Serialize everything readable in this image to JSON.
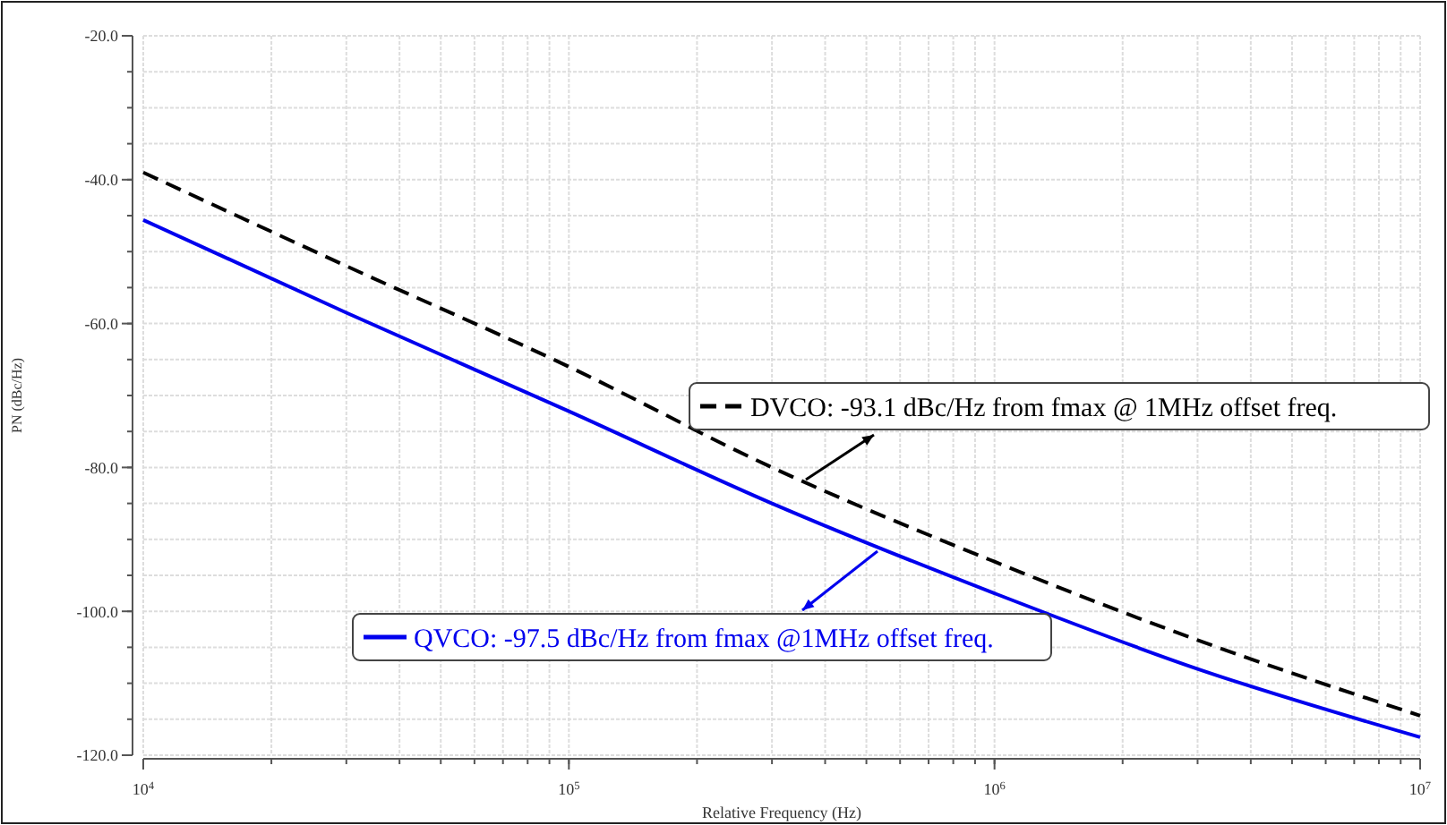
{
  "chart_data": {
    "type": "line",
    "xlabel": "Relative Frequency (Hz)",
    "ylabel": "PN (dBc/Hz)",
    "log": "x",
    "grid": true,
    "legend": "right",
    "x": [
      10000,
      30000,
      100000,
      300000,
      1000000,
      3000000,
      10000000
    ],
    "xlim": [
      10000,
      10000000
    ],
    "xticks": [
      {
        "value": 10000,
        "label": "10$^{4}$"
      },
      {
        "value": 100000,
        "label": "10$^{5}$"
      },
      {
        "value": 1000000,
        "label": "10$^{6}$"
      },
      {
        "value": 10000000,
        "label": "10$^{7}$"
      }
    ],
    "ylim": [
      -120,
      -20
    ],
    "yticks": [
      {
        "value": -120,
        "label": "-120.0"
      },
      {
        "value": -100,
        "label": "-100.0"
      },
      {
        "value": -80,
        "label": "-80.0"
      },
      {
        "value": -60,
        "label": "-60.0"
      },
      {
        "value": -40,
        "label": "-40.0"
      },
      {
        "value": -20,
        "label": "-20.0"
      }
    ],
    "series": [
      {
        "name": "DVCO: -93.1 dBc/Hz from fmax @ 1MHz offset freq.",
        "color": "#000000",
        "line_style": "dashed",
        "values": [
          -39,
          -52,
          -66,
          -80,
          -93.1,
          -104,
          -114.5
        ]
      },
      {
        "name": "QVCO: -97.5 dBc/Hz from fmax @1MHz offset freq.",
        "color": "#0000ee",
        "line_style": "solid",
        "values": [
          -45.6,
          -58.5,
          -72.2,
          -85,
          -97.5,
          -108,
          -117.5
        ]
      }
    ]
  }
}
